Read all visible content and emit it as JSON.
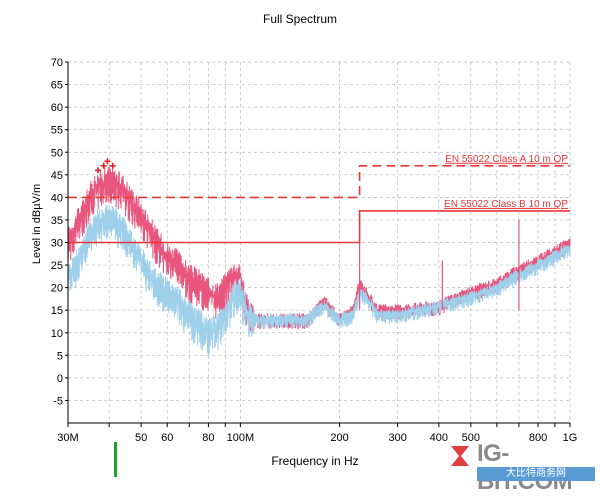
{
  "chart_data": {
    "type": "line",
    "title": "Full Spectrum",
    "xlabel": "Frequency in Hz",
    "ylabel": "Level in dBµV/m",
    "xscale": "log",
    "xlim": [
      30000000,
      1000000000
    ],
    "ylim": [
      -10,
      70
    ],
    "yticks": [
      -5,
      0,
      5,
      10,
      15,
      20,
      25,
      30,
      35,
      40,
      45,
      50,
      55,
      60,
      65,
      70
    ],
    "xticks": [
      {
        "value": 30000000,
        "label": "30M"
      },
      {
        "value": 50000000,
        "label": "50"
      },
      {
        "value": 60000000,
        "label": "60"
      },
      {
        "value": 80000000,
        "label": "80"
      },
      {
        "value": 100000000,
        "label": "100M"
      },
      {
        "value": 200000000,
        "label": "200"
      },
      {
        "value": 300000000,
        "label": "300"
      },
      {
        "value": 400000000,
        "label": "400"
      },
      {
        "value": 500000000,
        "label": "500"
      },
      {
        "value": 800000000,
        "label": "800"
      },
      {
        "value": 1000000000,
        "label": "1G"
      }
    ],
    "grid": true,
    "limit_lines": [
      {
        "name": "EN 55022 Class A 10 m QP",
        "style": "dashed",
        "color": "#e8373a",
        "x": [
          30000000,
          230000000,
          230000000,
          1000000000
        ],
        "y": [
          40,
          40,
          47,
          47
        ]
      },
      {
        "name": "EN 55022 Class B 10 m QP",
        "style": "solid",
        "color": "#e8373a",
        "x": [
          30000000,
          230000000,
          230000000,
          1000000000
        ],
        "y": [
          30,
          30,
          37,
          37
        ]
      }
    ],
    "series": [
      {
        "color": "#e8557d",
        "x": [
          30000000,
          33000000,
          36000000,
          40000000,
          44000000,
          48000000,
          52000000,
          56000000,
          60000000,
          65000000,
          70000000,
          75000000,
          80000000,
          85000000,
          90000000,
          95000000,
          100000000,
          105000000,
          110000000,
          120000000,
          140000000,
          160000000,
          170000000,
          180000000,
          200000000,
          220000000,
          230000000,
          240000000,
          260000000,
          300000000,
          400000000,
          500000000,
          600000000,
          700000000,
          800000000,
          900000000,
          1000000000
        ],
        "y": [
          30,
          36,
          42,
          44,
          42,
          38,
          34,
          30,
          27,
          25,
          22,
          21,
          19,
          18,
          20,
          23,
          22,
          15,
          13,
          13,
          13,
          13,
          15,
          17,
          13,
          15,
          21,
          19,
          15,
          15,
          16,
          19,
          21,
          24,
          26,
          28,
          30
        ]
      },
      {
        "color": "#9ecfeb",
        "x": [
          30000000,
          33000000,
          36000000,
          40000000,
          44000000,
          48000000,
          52000000,
          56000000,
          60000000,
          65000000,
          70000000,
          75000000,
          80000000,
          85000000,
          90000000,
          95000000,
          100000000,
          105000000,
          110000000,
          120000000,
          140000000,
          160000000,
          170000000,
          180000000,
          200000000,
          220000000,
          230000000,
          240000000,
          260000000,
          300000000,
          400000000,
          500000000,
          600000000,
          700000000,
          800000000,
          900000000,
          1000000000
        ],
        "y": [
          22,
          28,
          34,
          36,
          33,
          28,
          24,
          21,
          19,
          17,
          14,
          12,
          10,
          11,
          14,
          18,
          19,
          14,
          13,
          13,
          13,
          13,
          15,
          16,
          13,
          14,
          19,
          18,
          14,
          14,
          16,
          18,
          20,
          23,
          25,
          27,
          29
        ]
      }
    ],
    "peak_markers": {
      "x": [
        37000000,
        38500000,
        39500000,
        41000000
      ],
      "y": [
        46,
        47,
        48,
        47
      ]
    }
  },
  "watermark": {
    "brand": "IG-BIT.COM",
    "tag": "大比特商务网"
  }
}
